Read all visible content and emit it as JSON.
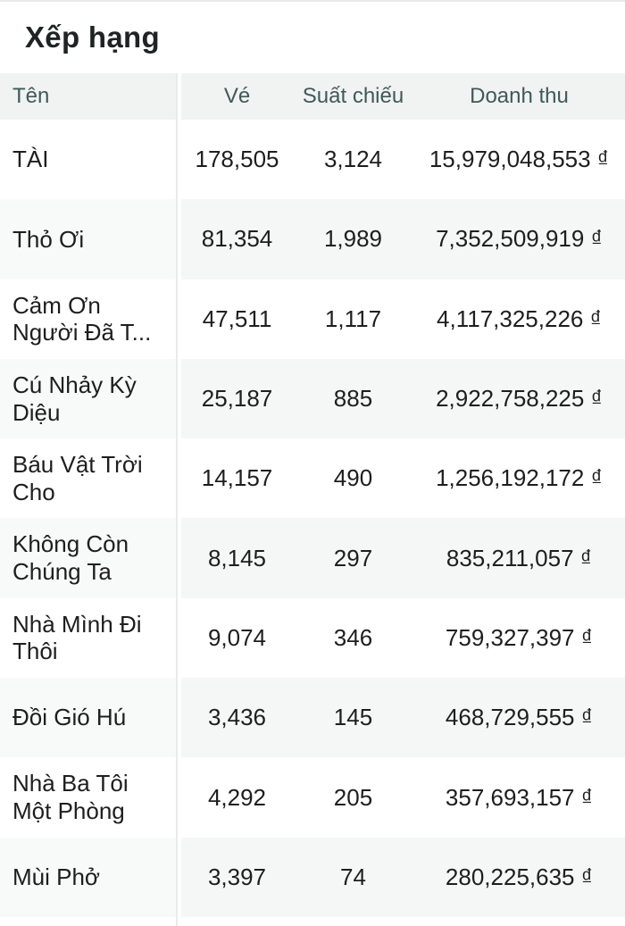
{
  "page": {
    "title": "Xếp hạng"
  },
  "table": {
    "columns": {
      "name": "Tên",
      "tickets": "Vé",
      "screenings": "Suất chiếu",
      "revenue": "Doanh thu"
    },
    "rows": [
      {
        "name": "TÀI",
        "tickets": "178,505",
        "screenings": "3,124",
        "revenue": "15,979,048,553 ₫"
      },
      {
        "name": "Thỏ Ơi",
        "tickets": "81,354",
        "screenings": "1,989",
        "revenue": "7,352,509,919 ₫"
      },
      {
        "name": "Cảm Ơn Người Đã T...",
        "tickets": "47,511",
        "screenings": "1,117",
        "revenue": "4,117,325,226 ₫"
      },
      {
        "name": "Cú Nhảy Kỳ Diệu",
        "tickets": "25,187",
        "screenings": "885",
        "revenue": "2,922,758,225 ₫"
      },
      {
        "name": "Báu Vật Trời Cho",
        "tickets": "14,157",
        "screenings": "490",
        "revenue": "1,256,192,172 ₫"
      },
      {
        "name": "Không Còn Chúng Ta",
        "tickets": "8,145",
        "screenings": "297",
        "revenue": "835,211,057 ₫"
      },
      {
        "name": "Nhà Mình Đi Thôi",
        "tickets": "9,074",
        "screenings": "346",
        "revenue": "759,327,397 ₫"
      },
      {
        "name": "Đồi Gió Hú",
        "tickets": "3,436",
        "screenings": "145",
        "revenue": "468,729,555 ₫"
      },
      {
        "name": "Nhà Ba Tôi Một Phòng",
        "tickets": "4,292",
        "screenings": "205",
        "revenue": "357,693,157 ₫"
      },
      {
        "name": "Mùi Phở",
        "tickets": "3,397",
        "screenings": "74",
        "revenue": "280,225,635 ₫"
      }
    ]
  },
  "colors": {
    "header_text": "#3f5a55",
    "header_background": "#f1f2f2",
    "alt_row_background": "#f5f6f6",
    "body_text": "#1e1e1e",
    "divider": "#e9eaea",
    "currency_symbol": "₫"
  }
}
